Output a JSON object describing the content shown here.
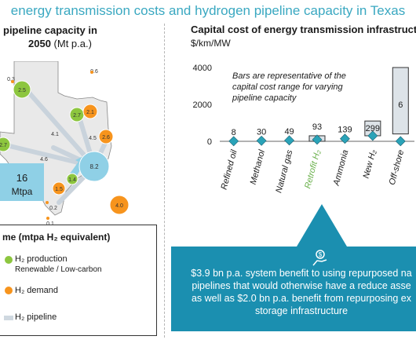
{
  "title": "energy transmission costs and hydrogen pipeline capacity in Texas",
  "left_panel": {
    "heading_line1": "pipeline capacity in",
    "heading_line2": "2050",
    "heading_unit": "(Mt p.a.)",
    "node_values": [
      "0.3",
      "2.5",
      "0.6",
      "2.7",
      "2.1",
      "4.1",
      "2.7",
      "4.6",
      "4.5",
      "2.6",
      "8.2",
      "1.4",
      "1.5",
      "0.2",
      "0.1",
      "4.0"
    ],
    "callout_value": "16",
    "callout_unit": "Mtpa",
    "legend": {
      "title": "me (mtpa H₂ equivalent)",
      "items": [
        {
          "label": "H₂ production",
          "sub": "Renewable / Low-carbon",
          "color": "#8dc63f"
        },
        {
          "label": "H₂ demand",
          "color": "#f7941d"
        },
        {
          "label": "H₂ pipeline",
          "color": "#cfd8e0"
        }
      ]
    }
  },
  "right_panel": {
    "heading": "Capital cost of energy transmission infrastructure",
    "unit": "$/km/MW"
  },
  "chart_data": {
    "type": "bar",
    "categories": [
      "Refined oil",
      "Methanol",
      "Natural gas",
      "Retrofit H₂",
      "Ammonia",
      "New H₂",
      "Off-shore"
    ],
    "values": [
      8,
      30,
      49,
      93,
      139,
      299,
      6
    ],
    "value_labels": [
      "8",
      "30",
      "49",
      "93",
      "139",
      "299",
      "6"
    ],
    "highlight": "Retrofit H₂",
    "ylim": [
      0,
      4000
    ],
    "yticks": [
      0,
      2000,
      4000
    ],
    "annotation": "Bars are representative of the capital cost range for varying pipeline capacity",
    "colors": {
      "diamond": "#2aa3b8",
      "bar_fill": "#dde3e8",
      "highlight_label": "#6ab04c"
    }
  },
  "callout": {
    "lines": [
      "$3.9 bn p.a. system benefit to using repurposed na",
      "pipelines that would otherwise have a reduce asse",
      "as well as $2.0 bn p.a. benefit from repurposing ex",
      "storage infrastructure"
    ]
  }
}
